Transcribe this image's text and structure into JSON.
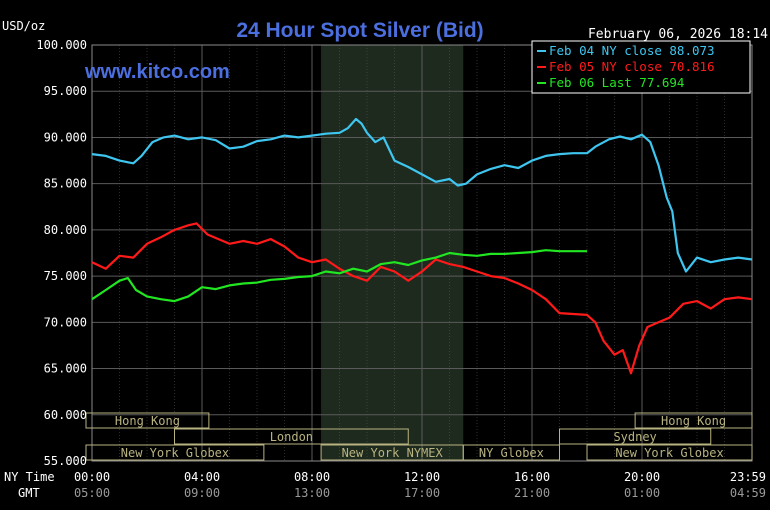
{
  "header": {
    "title": "24 Hour Spot Silver (Bid)",
    "y_unit": "USD/oz",
    "watermark": "www.kitco.com",
    "timestamp": "February 06, 2026 18:14"
  },
  "legend": [
    {
      "label": "Feb 04 NY close 88.073",
      "color": "#3ec6f0"
    },
    {
      "label": "Feb 05 NY close 70.816",
      "color": "#ff1a1a"
    },
    {
      "label": "Feb 06 Last 77.694",
      "color": "#22e622"
    }
  ],
  "bottom_axis": {
    "row1_label": "NY Time",
    "row2_label": "GMT",
    "ny_ticks": [
      "00:00",
      "04:00",
      "08:00",
      "12:00",
      "16:00",
      "20:00",
      "23:59"
    ],
    "gmt_ticks": [
      "05:00",
      "09:00",
      "13:00",
      "17:00",
      "21:00",
      "01:00",
      "04:59"
    ]
  },
  "sessions": [
    {
      "label": "Hong Kong",
      "row": 0,
      "start": -3,
      "end": 4.25
    },
    {
      "label": "London",
      "row": 1,
      "start": 3,
      "end": 11.5
    },
    {
      "label": "New York Globex",
      "row": 2,
      "start": -3,
      "end": 6.25
    },
    {
      "label": "New York NYMEX",
      "row": 2,
      "start": 8.33,
      "end": 13.5
    },
    {
      "label": "NY Globex",
      "row": 2,
      "start": 13.5,
      "end": 17
    },
    {
      "label": "Hong Kong",
      "row": 0,
      "start": 19.75,
      "end": 24
    },
    {
      "label": "Sydney",
      "row": 1,
      "start": 17,
      "end": 22.5
    },
    {
      "label": "New York Globex",
      "row": 2,
      "start": 18,
      "end": 24
    }
  ],
  "colors": {
    "background": "#000000",
    "grid": "#5a5a5a",
    "nymex_band": "#1e2a1e",
    "session_box": "#b8b380",
    "title": "#4c6fe0",
    "watermark": "#4c6fe0"
  },
  "chart_data": {
    "type": "line",
    "x_unit": "hours (NY time)",
    "xlim": [
      0,
      24
    ],
    "ylim": [
      55,
      100
    ],
    "yticks": [
      55,
      60,
      65,
      70,
      75,
      80,
      85,
      90,
      95,
      100
    ],
    "ytick_labels": [
      "55.000",
      "60.000",
      "65.000",
      "70.000",
      "75.000",
      "80.000",
      "85.000",
      "90.000",
      "95.000",
      "100.000"
    ],
    "grid": true,
    "legend_position": "top-right",
    "series": [
      {
        "name": "Feb 04 NY close 88.073",
        "color": "#3ec6f0",
        "points": [
          [
            0,
            88.2
          ],
          [
            0.5,
            88.0
          ],
          [
            1,
            87.5
          ],
          [
            1.5,
            87.2
          ],
          [
            1.8,
            88.0
          ],
          [
            2.2,
            89.5
          ],
          [
            2.6,
            90.0
          ],
          [
            3,
            90.2
          ],
          [
            3.5,
            89.8
          ],
          [
            4,
            90.0
          ],
          [
            4.5,
            89.7
          ],
          [
            5,
            88.8
          ],
          [
            5.5,
            89.0
          ],
          [
            6,
            89.6
          ],
          [
            6.5,
            89.8
          ],
          [
            7,
            90.2
          ],
          [
            7.5,
            90.0
          ],
          [
            8,
            90.2
          ],
          [
            8.5,
            90.4
          ],
          [
            9,
            90.5
          ],
          [
            9.3,
            91.0
          ],
          [
            9.6,
            92.0
          ],
          [
            9.8,
            91.5
          ],
          [
            10,
            90.5
          ],
          [
            10.3,
            89.5
          ],
          [
            10.6,
            90.0
          ],
          [
            11,
            87.5
          ],
          [
            11.5,
            86.8
          ],
          [
            12,
            86.0
          ],
          [
            12.5,
            85.2
          ],
          [
            13,
            85.5
          ],
          [
            13.3,
            84.8
          ],
          [
            13.6,
            85.0
          ],
          [
            14,
            86.0
          ],
          [
            14.5,
            86.6
          ],
          [
            15,
            87.0
          ],
          [
            15.5,
            86.7
          ],
          [
            16,
            87.5
          ],
          [
            16.5,
            88.0
          ],
          [
            17,
            88.2
          ],
          [
            17.5,
            88.3
          ],
          [
            18,
            88.3
          ],
          [
            18.3,
            89.0
          ],
          [
            18.8,
            89.8
          ],
          [
            19.2,
            90.1
          ],
          [
            19.6,
            89.8
          ],
          [
            20,
            90.3
          ],
          [
            20.3,
            89.5
          ],
          [
            20.6,
            87.0
          ],
          [
            20.9,
            83.5
          ],
          [
            21.1,
            82.0
          ],
          [
            21.3,
            77.5
          ],
          [
            21.6,
            75.5
          ],
          [
            22,
            77.0
          ],
          [
            22.5,
            76.5
          ],
          [
            23,
            76.8
          ],
          [
            23.5,
            77.0
          ],
          [
            24,
            76.8
          ]
        ]
      },
      {
        "name": "Feb 05 NY close 70.816",
        "color": "#ff1a1a",
        "points": [
          [
            0,
            76.5
          ],
          [
            0.5,
            75.8
          ],
          [
            1,
            77.2
          ],
          [
            1.5,
            77.0
          ],
          [
            2,
            78.5
          ],
          [
            2.5,
            79.2
          ],
          [
            3,
            80.0
          ],
          [
            3.5,
            80.5
          ],
          [
            3.8,
            80.7
          ],
          [
            4.2,
            79.5
          ],
          [
            4.6,
            79.0
          ],
          [
            5,
            78.5
          ],
          [
            5.5,
            78.8
          ],
          [
            6,
            78.5
          ],
          [
            6.5,
            79.0
          ],
          [
            7,
            78.2
          ],
          [
            7.5,
            77.0
          ],
          [
            8,
            76.5
          ],
          [
            8.5,
            76.8
          ],
          [
            9,
            75.8
          ],
          [
            9.5,
            75.0
          ],
          [
            10,
            74.5
          ],
          [
            10.5,
            76.0
          ],
          [
            11,
            75.5
          ],
          [
            11.5,
            74.5
          ],
          [
            12,
            75.5
          ],
          [
            12.5,
            76.8
          ],
          [
            13,
            76.3
          ],
          [
            13.5,
            76.0
          ],
          [
            14,
            75.5
          ],
          [
            14.5,
            75.0
          ],
          [
            15,
            74.8
          ],
          [
            15.5,
            74.2
          ],
          [
            16,
            73.5
          ],
          [
            16.5,
            72.5
          ],
          [
            17,
            71.0
          ],
          [
            17.5,
            70.9
          ],
          [
            18,
            70.8
          ],
          [
            18.3,
            70.0
          ],
          [
            18.6,
            68.0
          ],
          [
            19,
            66.5
          ],
          [
            19.3,
            67.0
          ],
          [
            19.6,
            64.5
          ],
          [
            19.9,
            67.5
          ],
          [
            20.2,
            69.5
          ],
          [
            20.6,
            70.0
          ],
          [
            21,
            70.5
          ],
          [
            21.5,
            72.0
          ],
          [
            22,
            72.3
          ],
          [
            22.5,
            71.5
          ],
          [
            23,
            72.5
          ],
          [
            23.5,
            72.7
          ],
          [
            24,
            72.5
          ]
        ]
      },
      {
        "name": "Feb 06 Last 77.694",
        "color": "#22e622",
        "points": [
          [
            0,
            72.5
          ],
          [
            0.5,
            73.5
          ],
          [
            1,
            74.5
          ],
          [
            1.3,
            74.8
          ],
          [
            1.6,
            73.5
          ],
          [
            2,
            72.8
          ],
          [
            2.5,
            72.5
          ],
          [
            3,
            72.3
          ],
          [
            3.5,
            72.8
          ],
          [
            4,
            73.8
          ],
          [
            4.5,
            73.6
          ],
          [
            5,
            74.0
          ],
          [
            5.5,
            74.2
          ],
          [
            6,
            74.3
          ],
          [
            6.5,
            74.6
          ],
          [
            7,
            74.7
          ],
          [
            7.5,
            74.9
          ],
          [
            8,
            75.0
          ],
          [
            8.5,
            75.5
          ],
          [
            9,
            75.3
          ],
          [
            9.5,
            75.8
          ],
          [
            10,
            75.5
          ],
          [
            10.5,
            76.3
          ],
          [
            11,
            76.5
          ],
          [
            11.5,
            76.2
          ],
          [
            12,
            76.7
          ],
          [
            12.5,
            77.0
          ],
          [
            13,
            77.5
          ],
          [
            13.5,
            77.3
          ],
          [
            14,
            77.2
          ],
          [
            14.5,
            77.4
          ],
          [
            15,
            77.4
          ],
          [
            15.5,
            77.5
          ],
          [
            16,
            77.6
          ],
          [
            16.5,
            77.8
          ],
          [
            17,
            77.7
          ],
          [
            17.5,
            77.7
          ],
          [
            18,
            77.7
          ]
        ]
      }
    ]
  }
}
